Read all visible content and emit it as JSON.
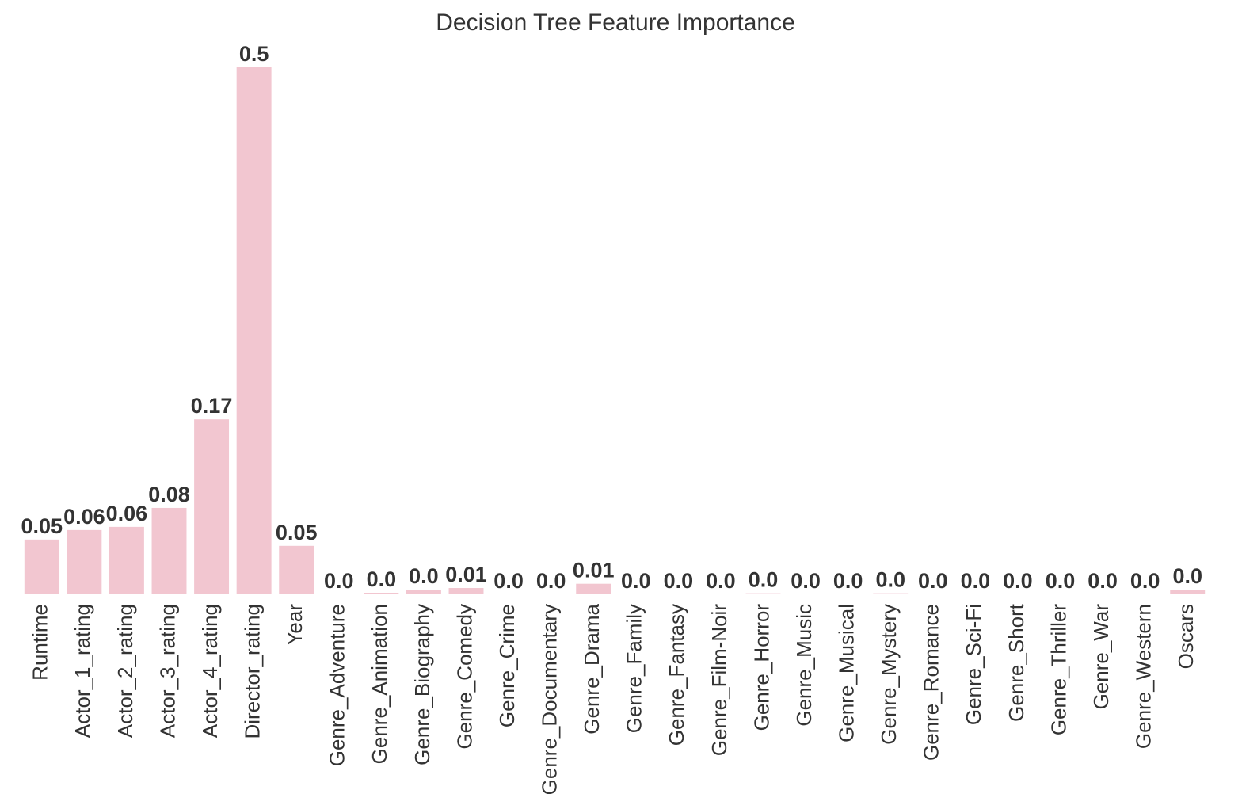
{
  "chart_data": {
    "type": "bar",
    "title": "Decision Tree Feature Importance",
    "categories": [
      "Runtime",
      "Actor_1_rating",
      "Actor_2_rating",
      "Actor_3_rating",
      "Actor_4_rating",
      "Director_rating",
      "Year",
      "Genre_Adventure",
      "Genre_Animation",
      "Genre_Biography",
      "Genre_Comedy",
      "Genre_Crime",
      "Genre_Documentary",
      "Genre_Drama",
      "Genre_Family",
      "Genre_Fantasy",
      "Genre_Film-Noir",
      "Genre_Horror",
      "Genre_Music",
      "Genre_Musical",
      "Genre_Mystery",
      "Genre_Romance",
      "Genre_Sci-Fi",
      "Genre_Short",
      "Genre_Thriller",
      "Genre_War",
      "Genre_Western",
      "Oscars"
    ],
    "values": [
      0.052,
      0.061,
      0.064,
      0.082,
      0.166,
      0.5,
      0.046,
      0,
      0.0015,
      0.0045,
      0.006,
      0,
      0,
      0.01,
      0,
      0,
      0,
      0.001,
      0,
      0,
      0.001,
      0,
      0,
      0,
      0,
      0,
      0,
      0.0045
    ],
    "value_labels": [
      "0.05",
      "0.06",
      "0.06",
      "0.08",
      "0.17",
      "0.5",
      "0.05",
      "0.0",
      "0.0",
      "0.0",
      "0.01",
      "0.0",
      "0.0",
      "0.01",
      "0.0",
      "0.0",
      "0.0",
      "0.0",
      "0.0",
      "0.0",
      "0.0",
      "0.0",
      "0.0",
      "0.0",
      "0.0",
      "0.0",
      "0.0",
      "0.0"
    ],
    "color": "#f2c6d0",
    "ylim": [
      0,
      0.5
    ]
  }
}
